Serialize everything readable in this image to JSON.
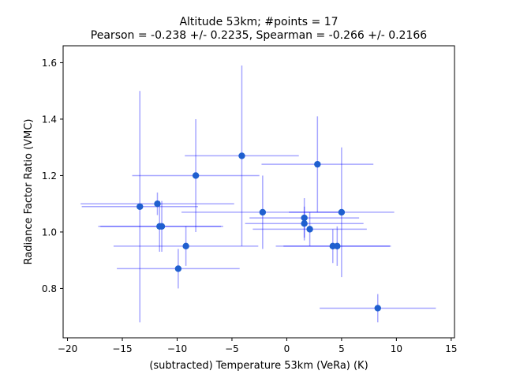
{
  "chart_data": {
    "type": "scatter",
    "title_line1": "Altitude 53km;  #points = 17",
    "title_line2": "Pearson = -0.238 +/-  0.2235, Spearman = -0.266 +/-  0.2166",
    "xlabel": "(subtracted) Temperature 53km (VeRa) (K)",
    "ylabel": "Radiance Factor Ratio (VMC)",
    "xlim": [
      -20.4,
      15.3
    ],
    "ylim": [
      0.625,
      1.66
    ],
    "x_ticks": [
      -20,
      -15,
      -10,
      -5,
      0,
      5,
      10,
      15
    ],
    "x_tick_labels": [
      "−20",
      "−15",
      "−10",
      "−5",
      "0",
      "5",
      "10",
      "15"
    ],
    "y_ticks": [
      0.8,
      1.0,
      1.2,
      1.4,
      1.6
    ],
    "y_tick_labels": [
      "0.8",
      "1.0",
      "1.2",
      "1.4",
      "1.6"
    ],
    "grid": false,
    "colors": {
      "point": "#1f5fcf",
      "errorbar": "#0000ff"
    },
    "points": [
      {
        "x": -13.4,
        "y": 1.09,
        "xerr": 5.3,
        "yerr": 0.41
      },
      {
        "x": -11.8,
        "y": 1.1,
        "xerr": 7.0,
        "yerr": 0.04
      },
      {
        "x": -11.6,
        "y": 1.02,
        "xerr": 5.6,
        "yerr": 0.09
      },
      {
        "x": -11.4,
        "y": 1.02,
        "xerr": 5.6,
        "yerr": 0.09
      },
      {
        "x": -9.9,
        "y": 0.87,
        "xerr": 5.6,
        "yerr": 0.07
      },
      {
        "x": -9.2,
        "y": 0.95,
        "xerr": 6.6,
        "yerr": 0.07
      },
      {
        "x": -8.3,
        "y": 1.2,
        "xerr": 5.8,
        "yerr": 0.2
      },
      {
        "x": -4.1,
        "y": 1.27,
        "xerr": 5.2,
        "yerr": 0.32
      },
      {
        "x": -2.2,
        "y": 1.07,
        "xerr": 7.4,
        "yerr": 0.13
      },
      {
        "x": 1.6,
        "y": 1.05,
        "xerr": 5.0,
        "yerr": 0.07
      },
      {
        "x": 1.6,
        "y": 1.03,
        "xerr": 5.4,
        "yerr": 0.06
      },
      {
        "x": 2.1,
        "y": 1.01,
        "xerr": 5.2,
        "yerr": 0.06
      },
      {
        "x": 2.8,
        "y": 1.24,
        "xerr": 5.1,
        "yerr": 0.17
      },
      {
        "x": 4.2,
        "y": 0.95,
        "xerr": 5.2,
        "yerr": 0.06
      },
      {
        "x": 4.6,
        "y": 0.95,
        "xerr": 4.9,
        "yerr": 0.07
      },
      {
        "x": 5.0,
        "y": 1.07,
        "xerr": 4.8,
        "yerr": 0.23
      },
      {
        "x": 8.3,
        "y": 0.73,
        "xerr": 5.3,
        "yerr": 0.05
      }
    ]
  }
}
